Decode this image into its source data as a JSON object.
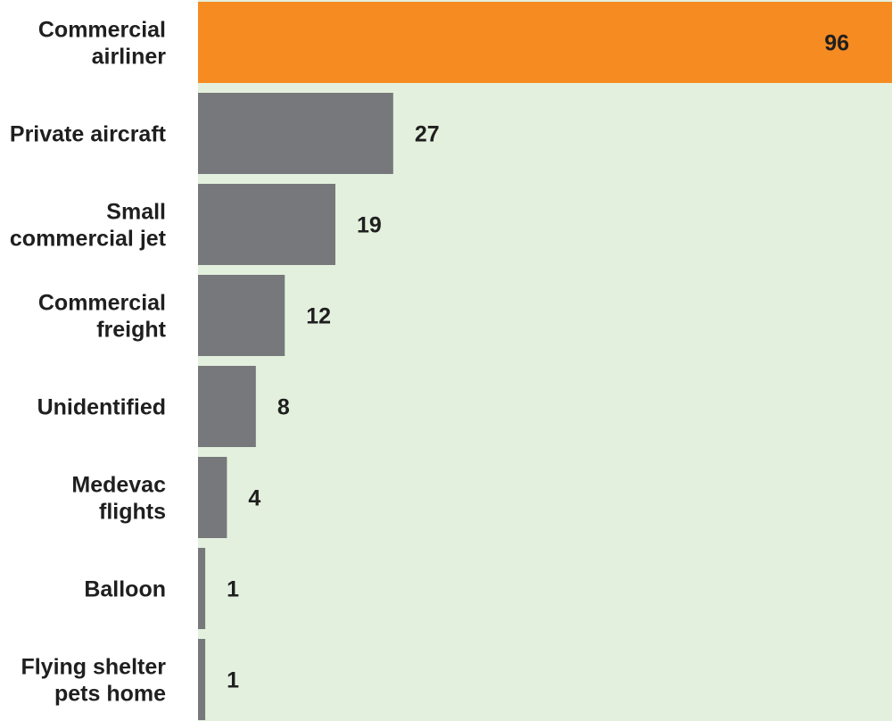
{
  "chart_data": {
    "type": "bar",
    "orientation": "horizontal",
    "title": "",
    "xlabel": "",
    "ylabel": "",
    "categories": [
      [
        "Commercial",
        "airliner"
      ],
      [
        "Private aircraft"
      ],
      [
        "Small",
        "commercial jet"
      ],
      [
        "Commercial",
        "freight"
      ],
      [
        "Unidentified"
      ],
      [
        "Medevac",
        "flights"
      ],
      [
        "Balloon"
      ],
      [
        "Flying shelter",
        "pets home"
      ]
    ],
    "values": [
      96,
      27,
      19,
      12,
      8,
      4,
      1,
      1
    ],
    "xlim": [
      0,
      96
    ],
    "grid": false,
    "colors": {
      "plot_background": "#e3f0dd",
      "highlight_bar": "#f68b22",
      "bar": "#77787b",
      "text": "#1f1f1f"
    },
    "highlight_index": 0
  }
}
